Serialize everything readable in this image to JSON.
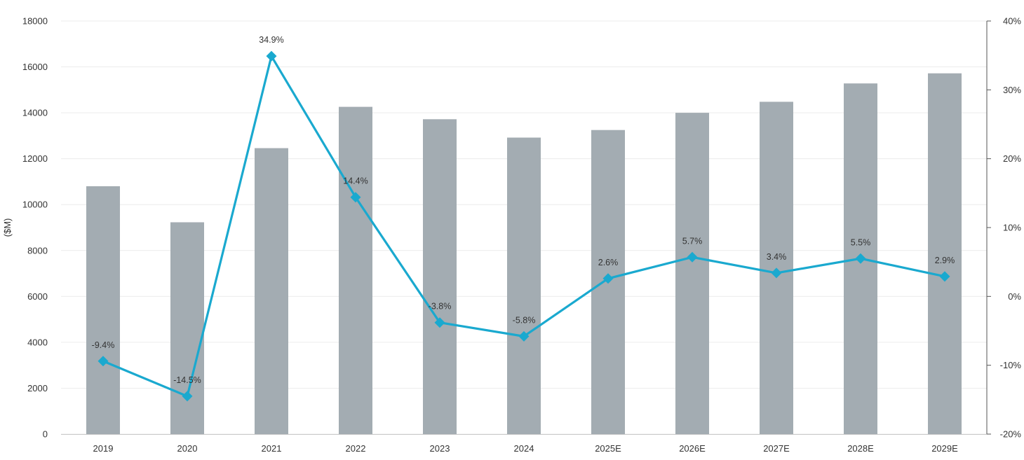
{
  "chart_data": {
    "type": "bar",
    "categories": [
      "2019",
      "2020",
      "2021",
      "2022",
      "2023",
      "2024",
      "2025E",
      "2026E",
      "2027E",
      "2028E",
      "2029E"
    ],
    "series": [
      {
        "type": "bar",
        "axis": "left",
        "values": [
          10800,
          9230,
          12460,
          14260,
          13720,
          12920,
          13250,
          14000,
          14480,
          15280,
          15720
        ]
      },
      {
        "type": "line",
        "axis": "right",
        "values": [
          -9.4,
          -14.5,
          34.9,
          14.4,
          -3.8,
          -5.8,
          2.6,
          5.7,
          3.4,
          5.5,
          2.9
        ],
        "labels": [
          "-9.4%",
          "-14.5%",
          "34.9%",
          "14.4%",
          "-3.8%",
          "-5.8%",
          "2.6%",
          "5.7%",
          "3.4%",
          "5.5%",
          "2.9%"
        ]
      }
    ],
    "ylabel": "($M)",
    "ylim": [
      0,
      18000
    ],
    "yticks": [
      0,
      2000,
      4000,
      6000,
      8000,
      10000,
      12000,
      14000,
      16000,
      18000
    ],
    "y2lim": [
      -20,
      40
    ],
    "y2ticks": [
      -20,
      -10,
      0,
      10,
      20,
      30,
      40
    ],
    "y2tick_labels": [
      "-20%",
      "-10%",
      "0%",
      "10%",
      "20%",
      "30%",
      "40%"
    ],
    "grid": true,
    "colors": {
      "bar": "#a3acb2",
      "line": "#1aa9cf",
      "grid": "#ececec",
      "axis": "#555555"
    }
  }
}
